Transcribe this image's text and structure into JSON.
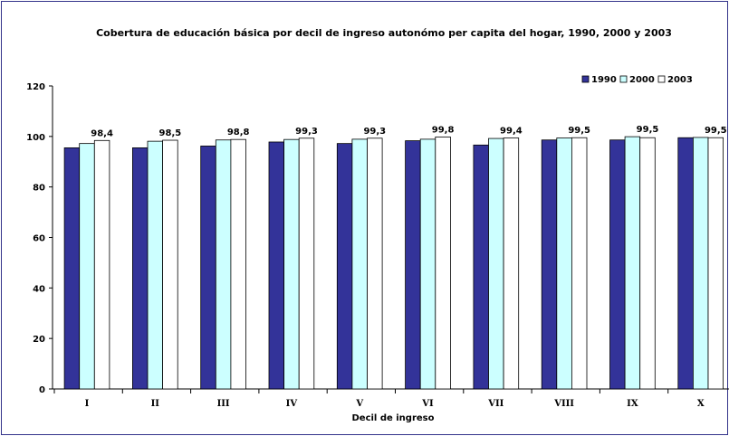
{
  "chart_data": {
    "type": "bar",
    "title": "Cobertura de educación básica por decil de ingreso autonómo per capita del hogar, 1990, 2000 y 2003",
    "xlabel": "Decil de ingreso",
    "ylabel": "",
    "ylim": [
      0,
      120
    ],
    "yticks": [
      0,
      20,
      40,
      60,
      80,
      100,
      120
    ],
    "grid": false,
    "legend_position": "top-right",
    "categories": [
      "I",
      "II",
      "III",
      "IV",
      "V",
      "VI",
      "VII",
      "VIII",
      "IX",
      "X"
    ],
    "series": [
      {
        "name": "1990",
        "color": "#333399",
        "values": [
          95.5,
          95.5,
          96.2,
          97.8,
          97.2,
          98.3,
          96.6,
          98.6,
          98.6,
          99.5
        ]
      },
      {
        "name": "2000",
        "color": "#ccffff",
        "values": [
          97.2,
          98.1,
          98.6,
          98.8,
          98.9,
          98.9,
          99.2,
          99.4,
          99.9,
          99.6
        ]
      },
      {
        "name": "2003",
        "color": "#ffffff",
        "values": [
          98.4,
          98.5,
          98.8,
          99.3,
          99.3,
          99.8,
          99.4,
          99.5,
          99.5,
          99.5
        ]
      }
    ],
    "data_labels": [
      "98,4",
      "98,5",
      "98,8",
      "99,3",
      "99,3",
      "99,8",
      "99,4",
      "99,5",
      "99,5",
      "99,5"
    ]
  }
}
